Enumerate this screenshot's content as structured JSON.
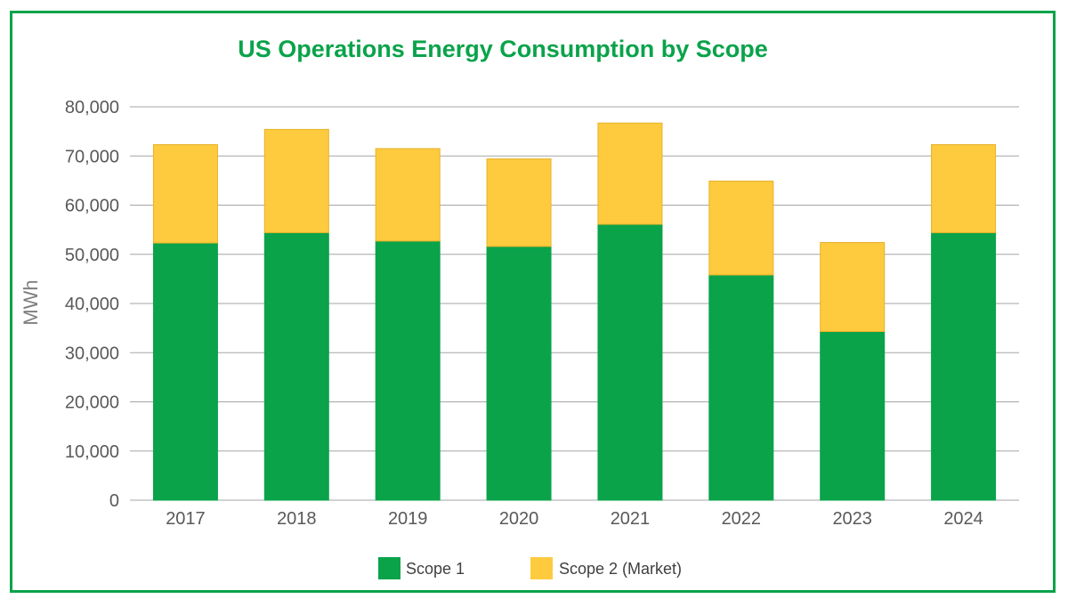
{
  "colors": {
    "frame": "#0aa34a",
    "title": "#0aa34a",
    "scope1": "#0aa34a",
    "scope2": "#fecb3e",
    "scope2_stroke": "#e6b22a",
    "gridline": "#a6a6a6"
  },
  "chart_data": {
    "type": "bar",
    "stacked": true,
    "title": "US Operations Energy Consumption by Scope",
    "xlabel": "",
    "ylabel": "MWh",
    "ylim": [
      0,
      80000
    ],
    "yticks": [
      0,
      10000,
      20000,
      30000,
      40000,
      50000,
      60000,
      70000,
      80000
    ],
    "ytick_labels": [
      "0",
      "10,000",
      "20,000",
      "30,000",
      "40,000",
      "50,000",
      "60,000",
      "70,000",
      "80,000"
    ],
    "grid": true,
    "legend_position": "bottom-center",
    "categories": [
      "2017",
      "2018",
      "2019",
      "2020",
      "2021",
      "2022",
      "2023",
      "2024"
    ],
    "series": [
      {
        "name": "Scope 1",
        "values": [
          52300,
          54400,
          52700,
          51600,
          56100,
          45800,
          34300,
          54400
        ]
      },
      {
        "name": "Scope 2 (Market)",
        "values": [
          20000,
          21000,
          18800,
          17800,
          20600,
          19100,
          18100,
          17900
        ]
      }
    ]
  }
}
